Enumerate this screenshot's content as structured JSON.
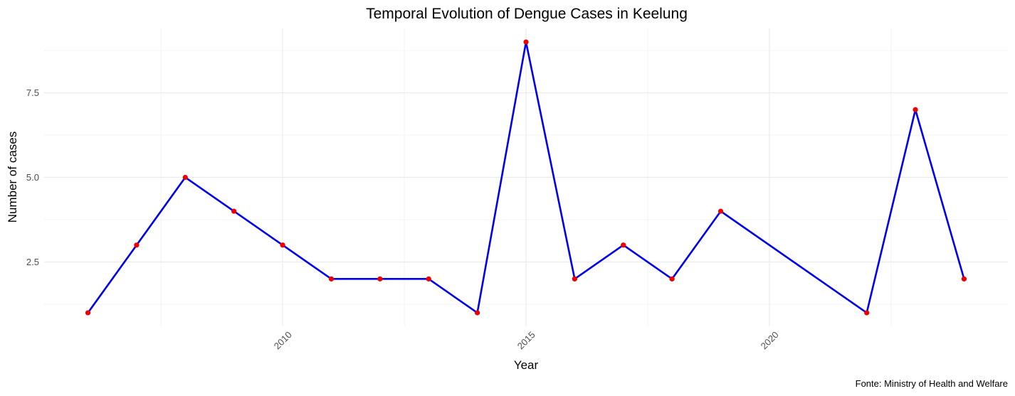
{
  "chart_data": {
    "type": "line",
    "title": "Temporal Evolution of Dengue Cases in Keelung",
    "xlabel": "Year",
    "ylabel": "Number of cases",
    "caption": "Fonte: Ministry of Health and Welfare",
    "x": [
      2006,
      2007,
      2008,
      2009,
      2010,
      2011,
      2012,
      2013,
      2014,
      2015,
      2016,
      2017,
      2018,
      2019,
      2022,
      2023,
      2024
    ],
    "series": [
      {
        "values": [
          1,
          3,
          5,
          4,
          3,
          2,
          2,
          2,
          1,
          9,
          2,
          3,
          2,
          4,
          1,
          7,
          2
        ]
      }
    ],
    "xlim": [
      2005.1,
      2024.9
    ],
    "ylim": [
      0.6,
      9.4
    ],
    "x_ticks": [
      2010,
      2015,
      2020
    ],
    "x_tick_labels": [
      "2010",
      "2015",
      "2020"
    ],
    "y_ticks": [
      2.5,
      5.0,
      7.5
    ],
    "y_tick_labels": [
      "2.5",
      "5.0",
      "7.5"
    ],
    "grid": true,
    "legend": "none",
    "colors": {
      "line": "#0000ee",
      "point": "#ee0000",
      "grid": "#ebebeb"
    }
  }
}
